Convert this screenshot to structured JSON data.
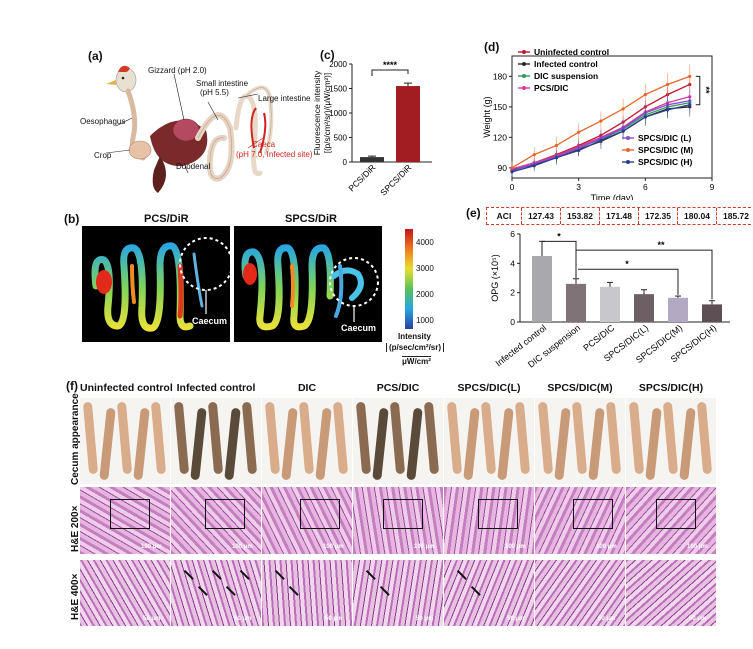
{
  "panel_a": {
    "label": "(a)",
    "parts": {
      "gizzard": "Gizzard (pH 2.0)",
      "small_intestine_1": "Small intestine",
      "small_intestine_2": "(pH 5.5)",
      "large_intestine": "Large intestine",
      "oesophagus": "Oesophagus",
      "crop": "Crop",
      "duodenal": "Duodenal",
      "caeca_1": "Caeca",
      "caeca_2": "(pH 7.0, Infected site)"
    }
  },
  "panel_b": {
    "label": "(b)",
    "left_title": "PCS/DiR",
    "right_title": "SPCS/DiR",
    "caecum_left": "Caecum",
    "caecum_right": "Caecum",
    "colorbar_ticks": [
      "4000",
      "3000",
      "2000",
      "1000"
    ],
    "intensity_label": "Intensity",
    "unit_line1": "(p/sec/cm²/sr)",
    "unit_line2": "μW/cm²"
  },
  "panel_c": {
    "label": "(c)",
    "significance": "****",
    "chart_data": {
      "type": "bar",
      "categories": [
        "PCS/DiR",
        "SPCS/DiR"
      ],
      "values": [
        100,
        1550
      ],
      "errors": [
        20,
        60
      ],
      "ylabel_line1": "Fluorescence intensity",
      "ylabel_line2": "[(p/s/cm²/sr)/(μW/cm²)]",
      "ylim": [
        0,
        2000
      ],
      "yticks": [
        "0",
        "500",
        "1000",
        "1500",
        "2000"
      ],
      "colors": [
        "#333333",
        "#a11d21"
      ]
    }
  },
  "panel_d": {
    "label": "(d)",
    "significance": "**",
    "legend": [
      {
        "name": "Uninfected control",
        "color": "#c0182b",
        "marker": "square"
      },
      {
        "name": "Infected control",
        "color": "#2b2b2b",
        "marker": "circle"
      },
      {
        "name": "DIC suspension",
        "color": "#2e9e5b",
        "marker": "triangle"
      },
      {
        "name": "PCS/DIC",
        "color": "#d63aa0",
        "marker": "triangle-down"
      },
      {
        "name": "SPCS/DIC (L)",
        "color": "#8b4bd1",
        "marker": "triangle"
      },
      {
        "name": "SPCS/DIC (M)",
        "color": "#e8662a",
        "marker": "circle"
      },
      {
        "name": "SPCS/DIC (H)",
        "color": "#2b3d8f",
        "marker": "triangle-down"
      }
    ],
    "chart_data": {
      "type": "line",
      "x": [
        0,
        1,
        2,
        3,
        4,
        5,
        6,
        7,
        8
      ],
      "xlabel": "Time (day)",
      "ylabel": "Weight (g)",
      "xlim": [
        0,
        9
      ],
      "ylim": [
        80,
        200
      ],
      "xticks": [
        "0",
        "3",
        "6",
        "9"
      ],
      "yticks": [
        "90",
        "120",
        "150",
        "180"
      ],
      "series": [
        {
          "name": "Uninfected control",
          "values": [
            88,
            95,
            103,
            112,
            122,
            135,
            150,
            162,
            172
          ],
          "color": "#c0182b"
        },
        {
          "name": "Infected control",
          "values": [
            88,
            93,
            100,
            108,
            116,
            126,
            140,
            148,
            150
          ],
          "color": "#2b2b2b"
        },
        {
          "name": "DIC suspension",
          "values": [
            89,
            94,
            101,
            110,
            118,
            128,
            142,
            150,
            154
          ],
          "color": "#2e9e5b"
        },
        {
          "name": "PCS/DIC",
          "values": [
            89,
            95,
            102,
            111,
            120,
            130,
            145,
            154,
            160
          ],
          "color": "#d63aa0"
        },
        {
          "name": "SPCS/DIC (L)",
          "values": [
            87,
            94,
            101,
            109,
            119,
            129,
            144,
            152,
            156
          ],
          "color": "#8b4bd1"
        },
        {
          "name": "SPCS/DIC (M)",
          "values": [
            90,
            103,
            112,
            125,
            136,
            148,
            162,
            172,
            180
          ],
          "color": "#e8662a"
        },
        {
          "name": "SPCS/DIC (H)",
          "values": [
            86,
            92,
            100,
            107,
            117,
            126,
            140,
            147,
            152
          ],
          "color": "#2b3d8f"
        }
      ]
    }
  },
  "panel_e": {
    "label": "(e)",
    "aci_label": "ACI",
    "aci_values": [
      "127.43",
      "153.82",
      "171.48",
      "172.35",
      "180.04",
      "185.72"
    ],
    "sig_1": "*",
    "sig_2": "**",
    "sig_3": "*",
    "chart_data": {
      "type": "bar",
      "categories": [
        "Infected control",
        "DIC suspension",
        "PCS/DIC",
        "SPCS/DIC(L)",
        "SPCS/DIC(M)",
        "SPCS/DIC(H)"
      ],
      "values": [
        4.5,
        2.6,
        2.4,
        1.9,
        1.65,
        1.2
      ],
      "errors": [
        1.0,
        0.35,
        0.3,
        0.3,
        0.12,
        0.25
      ],
      "ylabel": "OPG (×10⁵)",
      "ylim": [
        0,
        6
      ],
      "yticks": [
        "0",
        "2",
        "4",
        "6"
      ],
      "colors": [
        "#a9a9ad",
        "#7f7377",
        "#c8c8cc",
        "#6d5f63",
        "#b3a9c2",
        "#5e4f55"
      ]
    }
  },
  "panel_f": {
    "label": "(f)",
    "columns": [
      "Uninfected control",
      "Infected control",
      "DIC",
      "PCS/DIC",
      "SPCS/DIC(L)",
      "SPCS/DIC(M)",
      "SPCS/DIC(H)"
    ],
    "rows": [
      "Cecum appearance",
      "H&E 200×",
      "H&E 400×"
    ],
    "scale_200": "100 μm",
    "scale_400": "50 μm"
  }
}
